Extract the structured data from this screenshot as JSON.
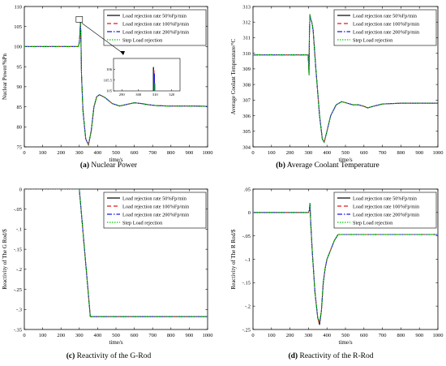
{
  "figure": {
    "legend_labels": [
      "Load rejection rate 50%Fp/min",
      "Load rejection rate 100%Fp/min",
      "Load rejection rate 200%Fp/min",
      "Step Load rejection"
    ],
    "colors": {
      "s1": "#000000",
      "s2": "#e0191a",
      "s3": "#1a1ae6",
      "s4": "#00cc00",
      "frame": "#000000"
    }
  },
  "chart_data": [
    {
      "type": "line",
      "caption_letter": "(a)",
      "caption_text": "Nuclear Power",
      "xlabel": "time/s",
      "ylabel": "Nuclear Power/%Pn",
      "xlim": [
        0,
        1000
      ],
      "ylim": [
        75,
        110
      ],
      "xticks": [
        0,
        100,
        200,
        300,
        400,
        500,
        600,
        700,
        800,
        900,
        1000
      ],
      "yticks": [
        75,
        80,
        85,
        90,
        95,
        100,
        105,
        110
      ],
      "legend": "top-right",
      "series": [
        {
          "name": "Load rejection rate 50%Fp/min",
          "style": "solid",
          "x": [
            0,
            295,
            300,
            303,
            306,
            308,
            310,
            312,
            320,
            335,
            350,
            365,
            380,
            395,
            410,
            440,
            480,
            520,
            560,
            600,
            640,
            680,
            720,
            780,
            850,
            920,
            1000
          ],
          "y": [
            100,
            100,
            101,
            103,
            106,
            104,
            99,
            93,
            84,
            77,
            75.5,
            79,
            85,
            87.5,
            88,
            87.3,
            85.8,
            85.2,
            85.6,
            86,
            85.8,
            85.5,
            85.3,
            85.2,
            85.2,
            85.2,
            85.1
          ]
        },
        {
          "name": "Load rejection rate 100%Fp/min",
          "style": "dashed",
          "x": [
            0,
            295,
            300,
            303,
            306,
            308,
            310,
            312,
            320,
            335,
            350,
            365,
            380,
            395,
            410,
            440,
            480,
            520,
            560,
            600,
            640,
            680,
            720,
            780,
            850,
            920,
            1000
          ],
          "y": [
            100,
            100,
            101,
            103,
            106,
            104,
            99,
            93,
            84,
            77,
            75.5,
            79,
            85,
            87.5,
            88,
            87.3,
            85.8,
            85.2,
            85.6,
            86,
            85.8,
            85.5,
            85.3,
            85.2,
            85.2,
            85.2,
            85.1
          ]
        },
        {
          "name": "Load rejection rate 200%Fp/min",
          "style": "dashdot",
          "x": [
            0,
            295,
            300,
            303,
            306,
            308,
            310,
            312,
            320,
            335,
            350,
            365,
            380,
            395,
            410,
            440,
            480,
            520,
            560,
            600,
            640,
            680,
            720,
            780,
            850,
            920,
            1000
          ],
          "y": [
            100,
            100,
            101,
            103,
            106,
            104,
            99,
            93,
            84,
            77,
            75.5,
            79,
            85,
            87.5,
            88,
            87.3,
            85.8,
            85.2,
            85.6,
            86,
            85.8,
            85.5,
            85.3,
            85.2,
            85.2,
            85.2,
            85.1
          ]
        },
        {
          "name": "Step Load rejection",
          "style": "dotted",
          "x": [
            0,
            295,
            300,
            303,
            306,
            308,
            310,
            312,
            320,
            335,
            350,
            365,
            380,
            395,
            410,
            440,
            480,
            520,
            560,
            600,
            640,
            680,
            720,
            780,
            850,
            920,
            1000
          ],
          "y": [
            100,
            100,
            101,
            103,
            106,
            104,
            99,
            93,
            84,
            77,
            75.5,
            79,
            85,
            87.5,
            88,
            87.3,
            85.8,
            85.2,
            85.6,
            86,
            85.8,
            85.5,
            85.3,
            85.2,
            85.2,
            85.2,
            85.1
          ]
        }
      ],
      "inset": {
        "xlim": [
          285,
          325
        ],
        "ylim": [
          105,
          106.5
        ],
        "xticks": [
          290,
          300,
          310,
          320
        ],
        "yticks": [
          105,
          105.5,
          106
        ],
        "bars": [
          {
            "x": 309.0,
            "y": 106.1,
            "color": "s1"
          },
          {
            "x": 309.3,
            "y": 105.95,
            "color": "s2"
          },
          {
            "x": 309.6,
            "y": 105.8,
            "color": "s3"
          },
          {
            "x": 309.9,
            "y": 105.35,
            "color": "s4"
          }
        ]
      }
    },
    {
      "type": "line",
      "caption_letter": "(b)",
      "caption_text": "Average Coolant Temperature",
      "xlabel": "time/s",
      "ylabel": "Average Coolant Temperature/°C",
      "xlim": [
        0,
        1000
      ],
      "ylim": [
        304,
        313
      ],
      "xticks": [
        0,
        100,
        200,
        300,
        400,
        500,
        600,
        700,
        800,
        900,
        1000
      ],
      "yticks": [
        304,
        305,
        306,
        307,
        308,
        309,
        310,
        311,
        312,
        313
      ],
      "legend": "top-right",
      "series": [
        {
          "name": "Load rejection rate 50%Fp/min",
          "style": "solid",
          "x": [
            0,
            298,
            300,
            303,
            305,
            308,
            312,
            318,
            325,
            340,
            360,
            375,
            385,
            400,
            420,
            450,
            480,
            510,
            540,
            570,
            600,
            620,
            650,
            700,
            800,
            900,
            1000
          ],
          "y": [
            309.9,
            309.9,
            309.5,
            308.6,
            311.2,
            312.5,
            312.2,
            312,
            311.5,
            309,
            306,
            304.5,
            304.3,
            305,
            306,
            306.7,
            306.9,
            306.8,
            306.7,
            306.7,
            306.6,
            306.5,
            306.6,
            306.75,
            306.8,
            306.8,
            306.8
          ]
        },
        {
          "name": "Load rejection rate 100%Fp/min",
          "style": "dashed",
          "x": [
            0,
            298,
            300,
            303,
            305,
            308,
            312,
            318,
            325,
            340,
            360,
            375,
            385,
            400,
            420,
            450,
            480,
            510,
            540,
            570,
            600,
            620,
            650,
            700,
            800,
            900,
            1000
          ],
          "y": [
            309.9,
            309.9,
            309.5,
            308.6,
            311.2,
            312.5,
            312.2,
            312,
            311.5,
            309,
            306,
            304.5,
            304.3,
            305,
            306,
            306.7,
            306.9,
            306.8,
            306.7,
            306.7,
            306.6,
            306.5,
            306.6,
            306.75,
            306.8,
            306.8,
            306.8
          ]
        },
        {
          "name": "Load rejection rate 200%Fp/min",
          "style": "dashdot",
          "x": [
            0,
            298,
            300,
            303,
            305,
            308,
            312,
            318,
            325,
            340,
            360,
            375,
            385,
            400,
            420,
            450,
            480,
            510,
            540,
            570,
            600,
            620,
            650,
            700,
            800,
            900,
            1000
          ],
          "y": [
            309.9,
            309.9,
            309.5,
            308.6,
            311.2,
            312.5,
            312.2,
            312,
            311.5,
            309,
            306,
            304.5,
            304.3,
            305,
            306,
            306.7,
            306.9,
            306.8,
            306.7,
            306.7,
            306.6,
            306.5,
            306.6,
            306.75,
            306.8,
            306.8,
            306.8
          ]
        },
        {
          "name": "Step Load rejection",
          "style": "dotted",
          "x": [
            0,
            298,
            300,
            303,
            305,
            308,
            312,
            318,
            325,
            340,
            360,
            375,
            385,
            400,
            420,
            450,
            480,
            510,
            540,
            570,
            600,
            620,
            650,
            700,
            800,
            900,
            1000
          ],
          "y": [
            309.9,
            309.9,
            309.5,
            308.6,
            311.2,
            312.5,
            312.2,
            312,
            311.5,
            309,
            306,
            304.5,
            304.3,
            305,
            306,
            306.7,
            306.9,
            306.8,
            306.7,
            306.7,
            306.6,
            306.5,
            306.6,
            306.75,
            306.8,
            306.8,
            306.8
          ]
        }
      ]
    },
    {
      "type": "line",
      "caption_letter": "(c)",
      "caption_text": "Reactivity of the G-Rod",
      "xlabel": "time/s",
      "ylabel": "Reactivity of The G Rod/$",
      "xlim": [
        0,
        1000
      ],
      "ylim": [
        -0.35,
        0
      ],
      "xticks": [
        0,
        100,
        200,
        300,
        400,
        500,
        600,
        700,
        800,
        900,
        1000
      ],
      "yticks": [
        0,
        -0.05,
        -0.1,
        -0.15,
        -0.2,
        -0.25,
        -0.3,
        -0.35
      ],
      "legend": "top-right",
      "series": [
        {
          "name": "Load rejection rate 50%Fp/min",
          "style": "solid",
          "x": [
            0,
            300,
            360,
            1000
          ],
          "y": [
            0,
            0,
            -0.318,
            -0.318
          ]
        },
        {
          "name": "Load rejection rate 100%Fp/min",
          "style": "dashed",
          "x": [
            0,
            300,
            360,
            1000
          ],
          "y": [
            0,
            0,
            -0.318,
            -0.318
          ]
        },
        {
          "name": "Load rejection rate 200%Fp/min",
          "style": "dashdot",
          "x": [
            0,
            300,
            360,
            1000
          ],
          "y": [
            0,
            0,
            -0.318,
            -0.318
          ]
        },
        {
          "name": "Step Load rejection",
          "style": "dotted",
          "x": [
            0,
            300,
            360,
            1000
          ],
          "y": [
            0,
            0,
            -0.318,
            -0.318
          ]
        }
      ]
    },
    {
      "type": "line",
      "caption_letter": "(d)",
      "caption_text": "Reactivity of the R-Rod",
      "xlabel": "time/s",
      "ylabel": "Reactivity of The R Rod/$",
      "xlim": [
        0,
        1000
      ],
      "ylim": [
        -0.25,
        0.05
      ],
      "xticks": [
        0,
        100,
        200,
        300,
        400,
        500,
        600,
        700,
        800,
        900,
        1000
      ],
      "yticks": [
        0.05,
        0,
        -0.05,
        -0.1,
        -0.15,
        -0.2,
        -0.25
      ],
      "legend": "top-right",
      "series": [
        {
          "name": "Load rejection rate 50%Fp/min",
          "style": "solid",
          "x": [
            0,
            300,
            305,
            308,
            312,
            320,
            335,
            350,
            360,
            370,
            380,
            390,
            400,
            420,
            440,
            460,
            1000
          ],
          "y": [
            0,
            0,
            0.005,
            0.02,
            -0.02,
            -0.08,
            -0.17,
            -0.225,
            -0.24,
            -0.21,
            -0.15,
            -0.12,
            -0.1,
            -0.08,
            -0.06,
            -0.047,
            -0.047
          ]
        },
        {
          "name": "Load rejection rate 100%Fp/min",
          "style": "dashed",
          "x": [
            0,
            300,
            305,
            308,
            312,
            320,
            335,
            350,
            360,
            370,
            380,
            390,
            400,
            420,
            440,
            460,
            1000
          ],
          "y": [
            0,
            0,
            0.005,
            0.02,
            -0.02,
            -0.08,
            -0.17,
            -0.225,
            -0.238,
            -0.21,
            -0.15,
            -0.12,
            -0.1,
            -0.08,
            -0.06,
            -0.047,
            -0.047
          ]
        },
        {
          "name": "Load rejection rate 200%Fp/min",
          "style": "dashdot",
          "x": [
            0,
            300,
            305,
            308,
            312,
            320,
            335,
            350,
            360,
            370,
            380,
            390,
            400,
            420,
            440,
            460,
            1000
          ],
          "y": [
            0,
            0,
            0.005,
            0.02,
            -0.02,
            -0.08,
            -0.17,
            -0.225,
            -0.235,
            -0.21,
            -0.15,
            -0.12,
            -0.1,
            -0.08,
            -0.06,
            -0.047,
            -0.047
          ]
        },
        {
          "name": "Step Load rejection",
          "style": "dotted",
          "x": [
            0,
            300,
            305,
            308,
            312,
            320,
            335,
            350,
            360,
            370,
            380,
            390,
            400,
            420,
            440,
            460,
            1000
          ],
          "y": [
            0,
            0,
            0.005,
            0.02,
            -0.02,
            -0.08,
            -0.17,
            -0.225,
            -0.232,
            -0.21,
            -0.15,
            -0.12,
            -0.1,
            -0.08,
            -0.06,
            -0.047,
            -0.047
          ]
        }
      ]
    }
  ]
}
